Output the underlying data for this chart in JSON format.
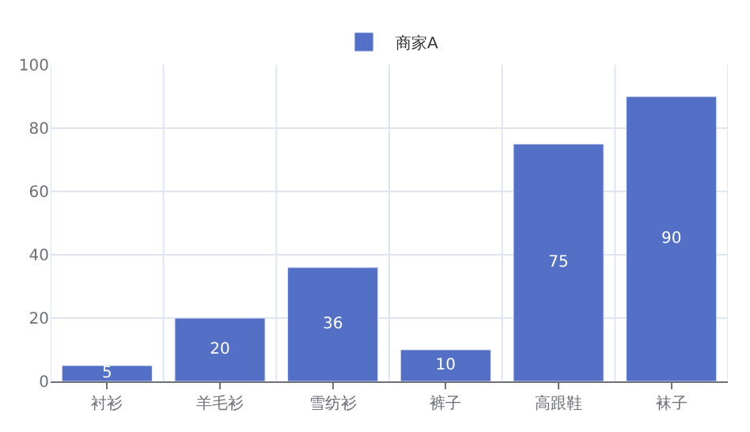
{
  "chart_data": {
    "type": "bar",
    "categories": [
      "衬衫",
      "羊毛衫",
      "雪纺衫",
      "裤子",
      "高跟鞋",
      "袜子"
    ],
    "series": [
      {
        "name": "商家A",
        "color": "#5470c6",
        "values": [
          5,
          20,
          36,
          10,
          75,
          90
        ]
      }
    ],
    "ylim": [
      0,
      100
    ],
    "yticks": [
      0,
      20,
      40,
      60,
      80,
      100
    ],
    "grid": true,
    "legend": "top",
    "data_labels": true
  }
}
